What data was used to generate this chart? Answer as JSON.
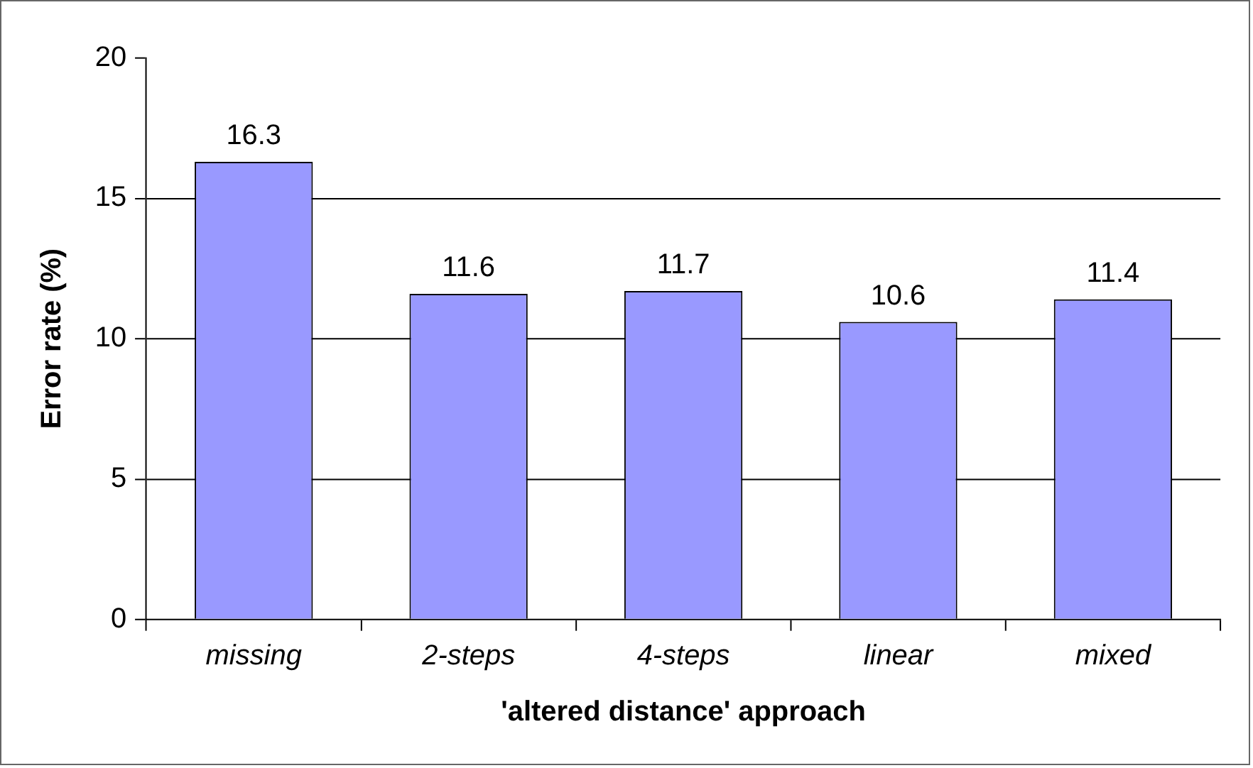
{
  "chart_data": {
    "type": "bar",
    "xlabel": "'altered distance' approach",
    "ylabel": "Error rate (%)",
    "categories": [
      "missing",
      "2-steps",
      "4-steps",
      "linear",
      "mixed"
    ],
    "values": [
      16.3,
      11.6,
      11.7,
      10.6,
      11.4
    ],
    "color": "#9999ff",
    "ylim": [
      0,
      20
    ],
    "yticks": [
      0,
      5,
      10,
      15,
      20
    ],
    "grid": "y",
    "data_labels": true,
    "legend": false
  }
}
